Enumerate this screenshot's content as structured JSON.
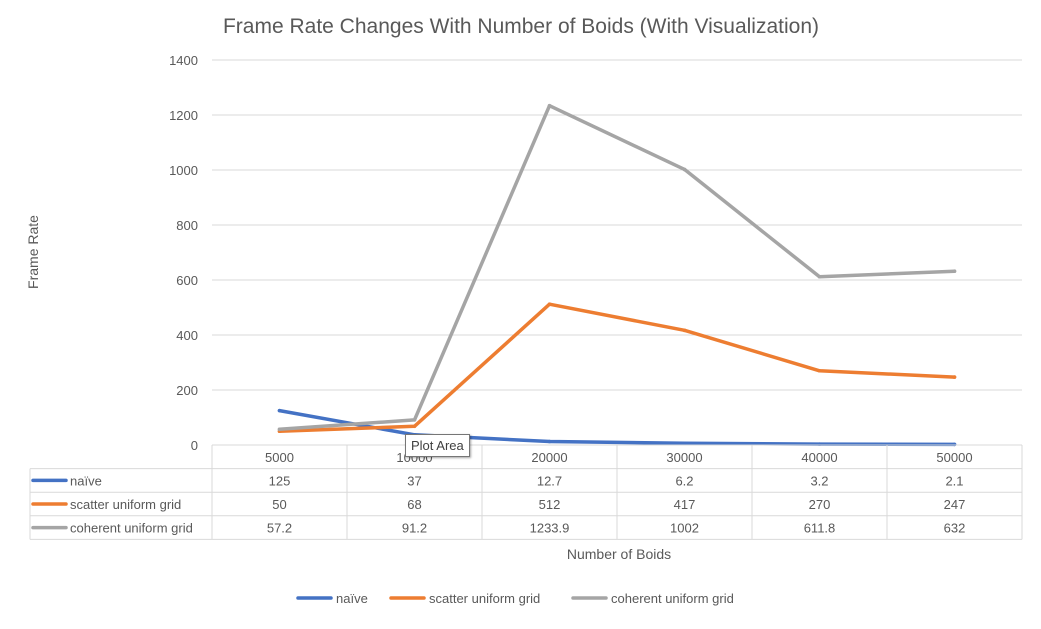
{
  "chart_data": {
    "type": "line",
    "title": "Frame Rate Changes With Number of Boids (With Visualization)",
    "xlabel": "Number of Boids",
    "ylabel": "Frame Rate",
    "categories": [
      "5000",
      "10000",
      "20000",
      "30000",
      "40000",
      "50000"
    ],
    "ylim": [
      0,
      1400
    ],
    "yticks": [
      0,
      200,
      400,
      600,
      800,
      1000,
      1200,
      1400
    ],
    "grid": true,
    "legend_position": "bottom",
    "data_table": true,
    "series": [
      {
        "name": "naïve",
        "color": "#4472c4",
        "values": [
          125,
          37,
          12.7,
          6.2,
          3.2,
          2.1
        ],
        "labels": [
          "125",
          "37",
          "12.7",
          "6.2",
          "3.2",
          "2.1"
        ]
      },
      {
        "name": "scatter uniform grid",
        "color": "#ed7d31",
        "values": [
          50,
          68,
          512,
          417,
          270,
          247
        ],
        "labels": [
          "50",
          "68",
          "512",
          "417",
          "270",
          "247"
        ]
      },
      {
        "name": "coherent  uniform grid",
        "color": "#a5a5a5",
        "values": [
          57.2,
          91.2,
          1233.9,
          1002,
          611.8,
          632
        ],
        "labels": [
          "57.2",
          "91.2",
          "1233.9",
          "1002",
          "611.8",
          "632"
        ]
      }
    ]
  },
  "tooltip": {
    "text": "Plot Area"
  }
}
